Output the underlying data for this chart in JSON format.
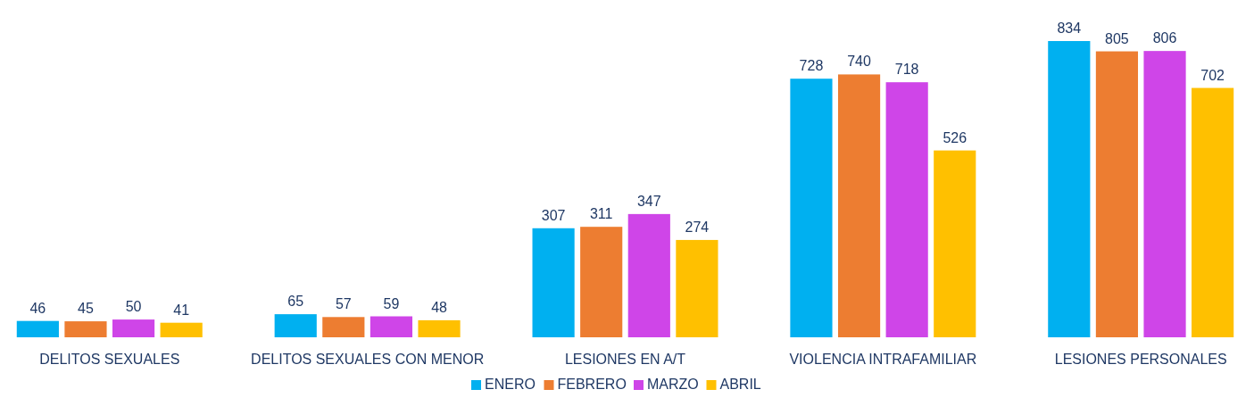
{
  "chart_data": {
    "type": "bar",
    "categories": [
      "DELITOS SEXUALES",
      "DELITOS SEXUALES CON MENOR",
      "LESIONES EN A/T",
      "VIOLENCIA INTRAFAMILIAR",
      "LESIONES PERSONALES"
    ],
    "series": [
      {
        "name": "ENERO",
        "color": "#00b0f0",
        "values": [
          46,
          65,
          307,
          728,
          834
        ]
      },
      {
        "name": "FEBRERO",
        "color": "#ed7d31",
        "values": [
          45,
          57,
          311,
          740,
          805
        ]
      },
      {
        "name": "MARZO",
        "color": "#cf45e8",
        "values": [
          50,
          59,
          347,
          718,
          806
        ]
      },
      {
        "name": "ABRIL",
        "color": "#ffc000",
        "values": [
          41,
          48,
          274,
          526,
          702
        ]
      }
    ],
    "data_labels": true,
    "legend": "bottom",
    "grid": false
  }
}
